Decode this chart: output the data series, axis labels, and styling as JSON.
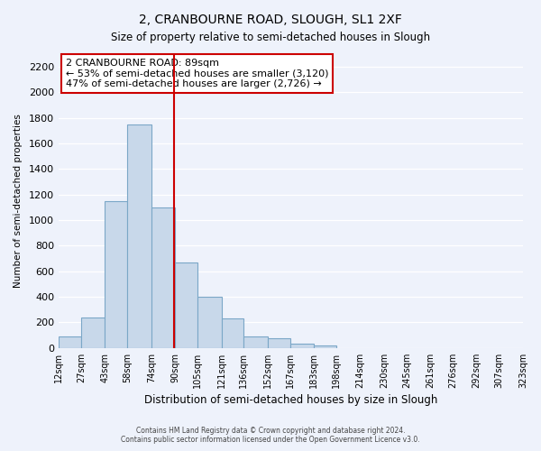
{
  "title": "2, CRANBOURNE ROAD, SLOUGH, SL1 2XF",
  "subtitle": "Size of property relative to semi-detached houses in Slough",
  "xlabel": "Distribution of semi-detached houses by size in Slough",
  "ylabel": "Number of semi-detached properties",
  "bar_edges": [
    12,
    27,
    43,
    58,
    74,
    90,
    105,
    121,
    136,
    152,
    167,
    183,
    198,
    214,
    230,
    245,
    261,
    276,
    292,
    307,
    323
  ],
  "bar_heights": [
    90,
    240,
    1150,
    1750,
    1100,
    670,
    400,
    230,
    90,
    75,
    35,
    20,
    0,
    0,
    0,
    0,
    0,
    0,
    0,
    0
  ],
  "bar_color": "#c8d8ea",
  "bar_edgecolor": "#7ba7c7",
  "property_line_x": 89,
  "property_line_color": "#cc0000",
  "annotation_title": "2 CRANBOURNE ROAD: 89sqm",
  "annotation_line1": "← 53% of semi-detached houses are smaller (3,120)",
  "annotation_line2": "47% of semi-detached houses are larger (2,726) →",
  "annotation_box_color": "white",
  "annotation_box_edgecolor": "#cc0000",
  "ylim": [
    0,
    2300
  ],
  "yticks": [
    0,
    200,
    400,
    600,
    800,
    1000,
    1200,
    1400,
    1600,
    1800,
    2000,
    2200
  ],
  "tick_labels": [
    "12sqm",
    "27sqm",
    "43sqm",
    "58sqm",
    "74sqm",
    "90sqm",
    "105sqm",
    "121sqm",
    "136sqm",
    "152sqm",
    "167sqm",
    "183sqm",
    "198sqm",
    "214sqm",
    "230sqm",
    "245sqm",
    "261sqm",
    "276sqm",
    "292sqm",
    "307sqm",
    "323sqm"
  ],
  "xlim_left": 12,
  "xlim_right": 323,
  "footer1": "Contains HM Land Registry data © Crown copyright and database right 2024.",
  "footer2": "Contains public sector information licensed under the Open Government Licence v3.0.",
  "bg_color": "#eef2fb",
  "grid_color": "#ffffff",
  "title_fontsize": 10,
  "subtitle_fontsize": 9
}
